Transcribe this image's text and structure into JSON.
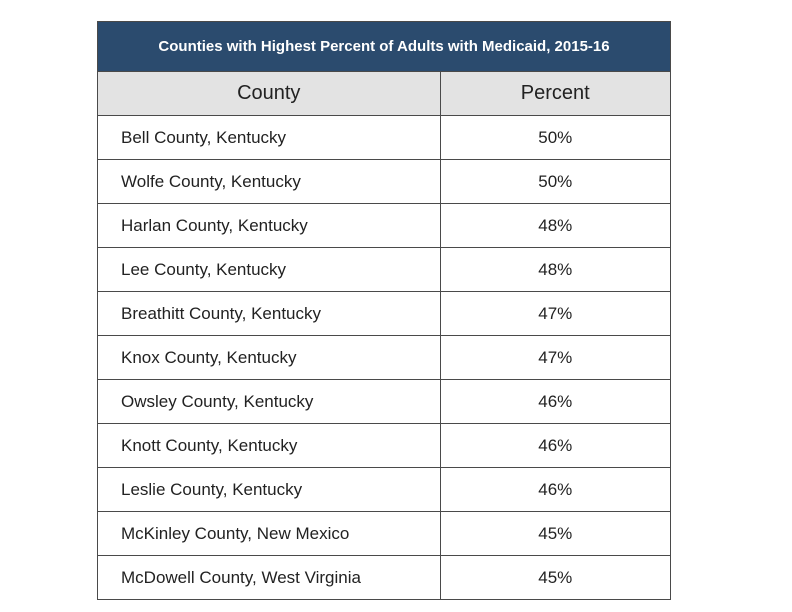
{
  "title": "Counties with Highest Percent of Adults with Medicaid, 2015-16",
  "headers": {
    "county": "County",
    "percent": "Percent"
  },
  "rows": [
    {
      "county": "Bell County, Kentucky",
      "percent": "50%"
    },
    {
      "county": "Wolfe County, Kentucky",
      "percent": "50%"
    },
    {
      "county": "Harlan County, Kentucky",
      "percent": "48%"
    },
    {
      "county": "Lee County, Kentucky",
      "percent": "48%"
    },
    {
      "county": "Breathitt County, Kentucky",
      "percent": "47%"
    },
    {
      "county": "Knox County, Kentucky",
      "percent": "47%"
    },
    {
      "county": "Owsley County, Kentucky",
      "percent": "46%"
    },
    {
      "county": "Knott County, Kentucky",
      "percent": "46%"
    },
    {
      "county": "Leslie County, Kentucky",
      "percent": "46%"
    },
    {
      "county": "McKinley County, New Mexico",
      "percent": "45%"
    },
    {
      "county": "McDowell County, West Virginia",
      "percent": "45%"
    }
  ],
  "colors": {
    "title_bg": "#2b4b6e",
    "header_bg": "#e3e3e3",
    "border": "#4a4a4a"
  }
}
